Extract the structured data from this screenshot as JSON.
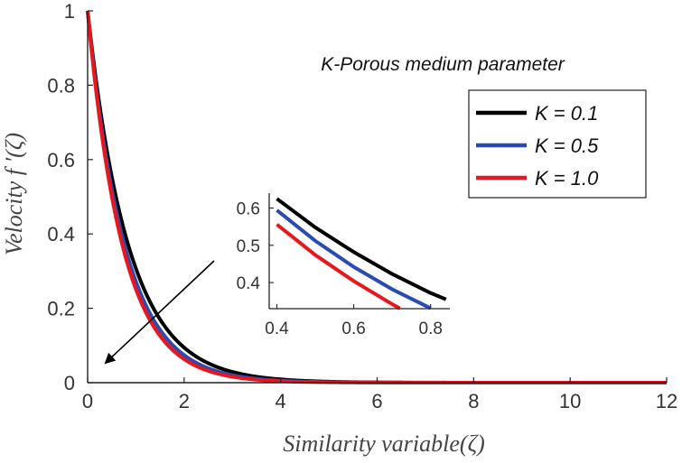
{
  "chart_data": {
    "type": "line",
    "title": "",
    "xlabel": "Similarity variable(ζ)",
    "ylabel": "Velocity  f ′(ζ)",
    "xlim": [
      0,
      12
    ],
    "ylim": [
      0,
      1
    ],
    "xticks": [
      "0",
      "2",
      "4",
      "6",
      "8",
      "10",
      "12"
    ],
    "yticks": [
      "0",
      "0.2",
      "0.4",
      "0.6",
      "0.8",
      "1"
    ],
    "annotation": "K-Porous medium parameter",
    "legend_position": "top-right",
    "series": [
      {
        "name": "K = 0.1",
        "color": "#000000",
        "decay": 1.18
      },
      {
        "name": "K = 0.5",
        "color": "#2b4bb0",
        "decay": 1.3
      },
      {
        "name": "K = 1.0",
        "color": "#e8161d",
        "decay": 1.38
      }
    ],
    "inset": {
      "xlim": [
        0.38,
        0.85
      ],
      "ylim": [
        0.33,
        0.64
      ],
      "xticks": [
        "0.4",
        "0.6",
        "0.8"
      ],
      "yticks": [
        "0.4",
        "0.5",
        "0.6"
      ],
      "series": [
        {
          "name": "K = 0.1",
          "color": "#000000",
          "x": [
            0.4,
            0.5,
            0.6,
            0.7,
            0.8,
            0.84
          ],
          "y": [
            0.625,
            0.548,
            0.482,
            0.423,
            0.372,
            0.355
          ]
        },
        {
          "name": "K = 0.5",
          "color": "#2b4bb0",
          "x": [
            0.4,
            0.5,
            0.6,
            0.7,
            0.8
          ],
          "y": [
            0.594,
            0.512,
            0.442,
            0.382,
            0.331
          ]
        },
        {
          "name": "K = 1.0",
          "color": "#e8161d",
          "x": [
            0.4,
            0.5,
            0.6,
            0.7,
            0.72
          ],
          "y": [
            0.556,
            0.474,
            0.404,
            0.342,
            0.331
          ]
        }
      ]
    }
  }
}
